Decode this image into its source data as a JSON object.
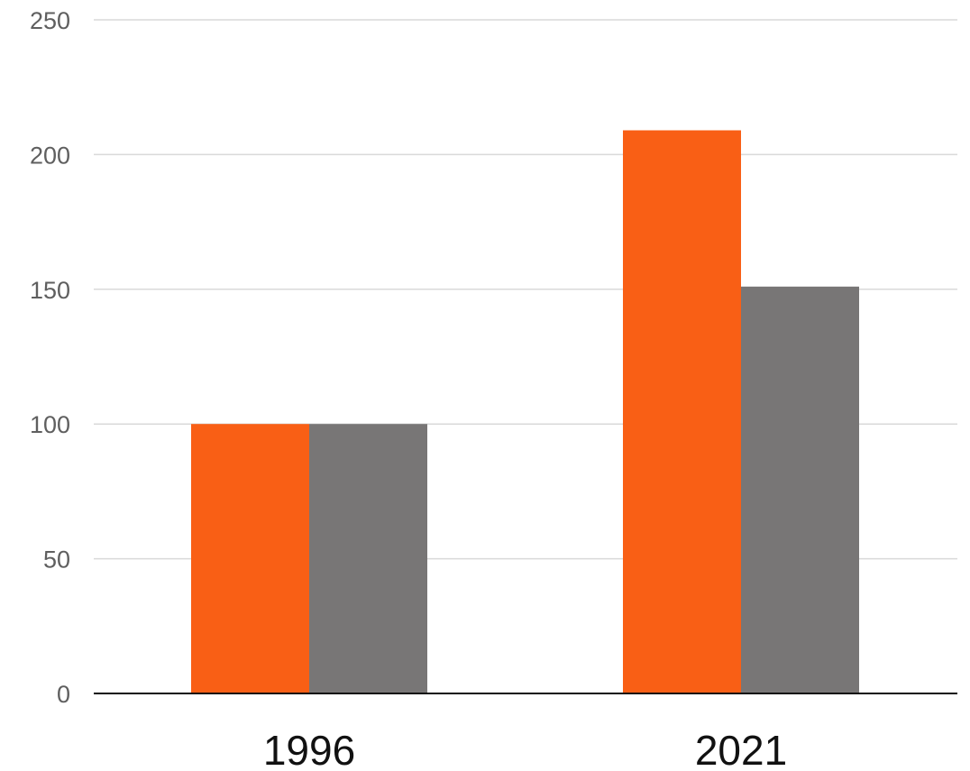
{
  "chart_data": {
    "type": "bar",
    "categories": [
      "1996",
      "2021"
    ],
    "series": [
      {
        "values": [
          100,
          209
        ],
        "color": "#f95f15"
      },
      {
        "values": [
          100,
          151
        ],
        "color": "#787676"
      }
    ],
    "yticks": [
      0,
      50,
      100,
      150,
      200,
      250
    ],
    "ylim": [
      0,
      250
    ],
    "grid": true,
    "gridline_color": "#d9d9d9",
    "baseline_color": "#111111",
    "title": "",
    "xlabel": "",
    "ylabel": ""
  }
}
